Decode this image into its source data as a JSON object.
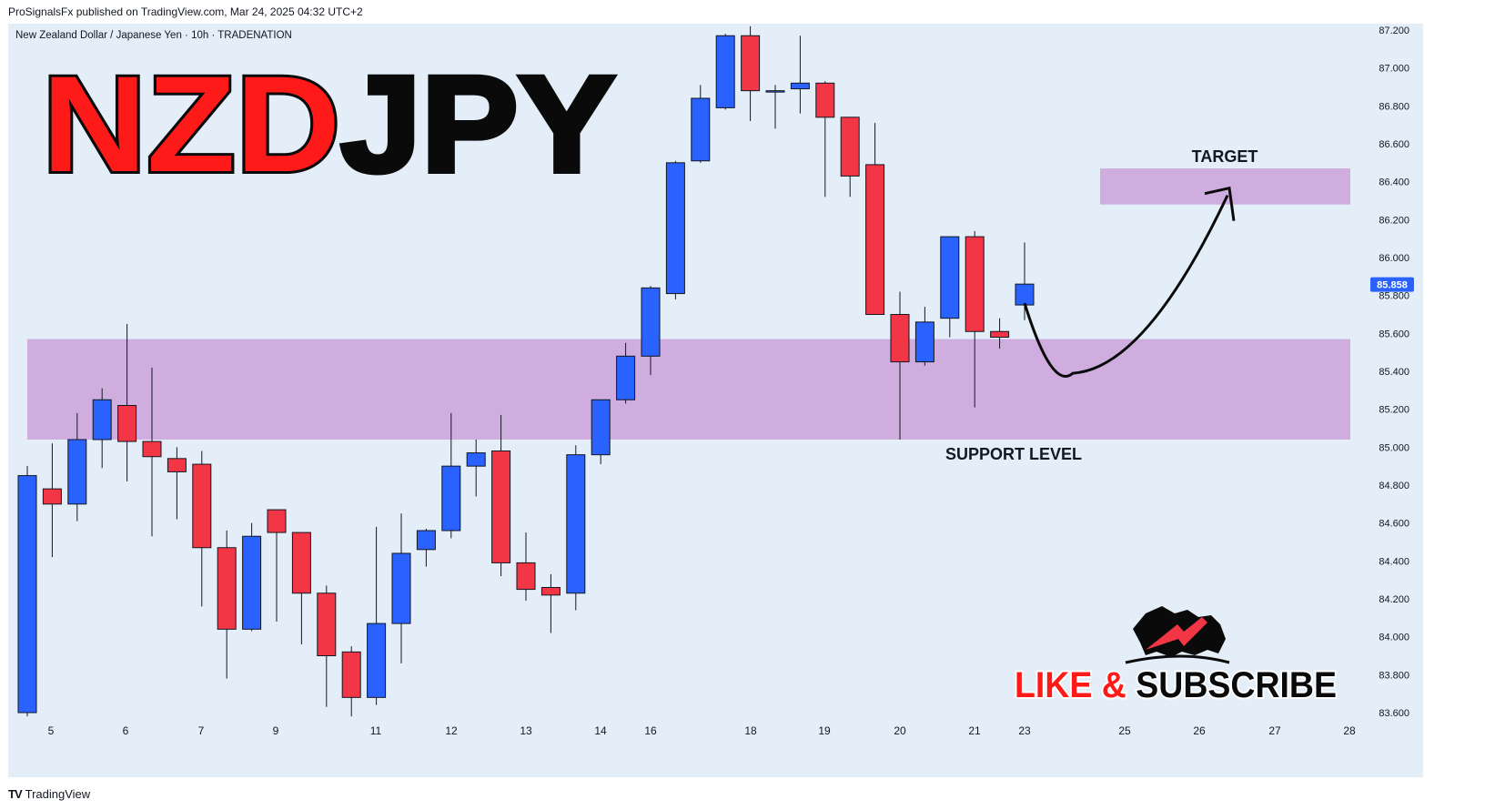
{
  "header": {
    "published": "ProSignalsFx published on TradingView.com, Mar 24, 2025 04:32 UTC+2",
    "instrument": "New Zealand Dollar / Japanese Yen · 10h · TRADENATION"
  },
  "overlay": {
    "title_part1": "NZD",
    "title_part2": "JPY",
    "target_label": "TARGET",
    "support_label": "SUPPORT LEVEL",
    "cta_like": "LIKE",
    "cta_amp": "&",
    "cta_subscribe": "SUBSCRIBE"
  },
  "footer": {
    "logo": "TV",
    "brand": "TradingView"
  },
  "colors": {
    "bull": "#2962ff",
    "bear": "#f23645",
    "zone": "#cea9dc",
    "background": "#e3eef9",
    "title_red": "#ff1a1a"
  },
  "chart_data": {
    "type": "candlestick",
    "symbol": "NZDJPY",
    "timeframe": "10h",
    "ylim": [
      83.55,
      87.25
    ],
    "y_ticks": [
      "87.200",
      "87.000",
      "86.800",
      "86.600",
      "86.400",
      "86.200",
      "86.000",
      "85.800",
      "85.600",
      "85.400",
      "85.200",
      "85.000",
      "84.800",
      "84.600",
      "84.400",
      "84.200",
      "84.000",
      "83.800",
      "83.600"
    ],
    "x_ticks": [
      "5",
      "6",
      "7",
      "9",
      "11",
      "12",
      "13",
      "14",
      "16",
      "18",
      "19",
      "20",
      "21",
      "23",
      "25",
      "26",
      "27",
      "28"
    ],
    "current_price": "85.858",
    "candles": [
      {
        "o": 83.6,
        "h": 84.9,
        "l": 83.58,
        "c": 84.85
      },
      {
        "o": 84.78,
        "h": 85.02,
        "l": 84.42,
        "c": 84.7
      },
      {
        "o": 84.7,
        "h": 85.18,
        "l": 84.61,
        "c": 85.04
      },
      {
        "o": 85.04,
        "h": 85.31,
        "l": 84.89,
        "c": 85.25
      },
      {
        "o": 85.22,
        "h": 85.65,
        "l": 84.82,
        "c": 85.03
      },
      {
        "o": 85.03,
        "h": 85.42,
        "l": 84.53,
        "c": 84.95
      },
      {
        "o": 84.94,
        "h": 85.0,
        "l": 84.62,
        "c": 84.87
      },
      {
        "o": 84.91,
        "h": 84.98,
        "l": 84.16,
        "c": 84.47
      },
      {
        "o": 84.47,
        "h": 84.56,
        "l": 83.78,
        "c": 84.04
      },
      {
        "o": 84.04,
        "h": 84.6,
        "l": 84.03,
        "c": 84.53
      },
      {
        "o": 84.67,
        "h": 84.67,
        "l": 84.08,
        "c": 84.55
      },
      {
        "o": 84.55,
        "h": 84.55,
        "l": 83.96,
        "c": 84.23
      },
      {
        "o": 84.23,
        "h": 84.27,
        "l": 83.63,
        "c": 83.9
      },
      {
        "o": 83.92,
        "h": 83.95,
        "l": 83.58,
        "c": 83.68
      },
      {
        "o": 83.68,
        "h": 84.58,
        "l": 83.64,
        "c": 84.07
      },
      {
        "o": 84.07,
        "h": 84.65,
        "l": 83.86,
        "c": 84.44
      },
      {
        "o": 84.46,
        "h": 84.57,
        "l": 84.37,
        "c": 84.56
      },
      {
        "o": 84.56,
        "h": 85.18,
        "l": 84.52,
        "c": 84.9
      },
      {
        "o": 84.9,
        "h": 85.04,
        "l": 84.74,
        "c": 84.97
      },
      {
        "o": 84.98,
        "h": 85.17,
        "l": 84.32,
        "c": 84.39
      },
      {
        "o": 84.39,
        "h": 84.55,
        "l": 84.19,
        "c": 84.25
      },
      {
        "o": 84.26,
        "h": 84.33,
        "l": 84.02,
        "c": 84.22
      },
      {
        "o": 84.23,
        "h": 85.01,
        "l": 84.14,
        "c": 84.96
      },
      {
        "o": 84.96,
        "h": 85.25,
        "l": 84.91,
        "c": 85.25
      },
      {
        "o": 85.25,
        "h": 85.55,
        "l": 85.23,
        "c": 85.48
      },
      {
        "o": 85.48,
        "h": 85.85,
        "l": 85.38,
        "c": 85.84
      },
      {
        "o": 85.81,
        "h": 86.51,
        "l": 85.78,
        "c": 86.5
      },
      {
        "o": 86.51,
        "h": 86.91,
        "l": 86.5,
        "c": 86.84
      },
      {
        "o": 86.79,
        "h": 87.18,
        "l": 86.78,
        "c": 87.17
      },
      {
        "o": 87.17,
        "h": 87.22,
        "l": 86.72,
        "c": 86.88
      },
      {
        "o": 86.88,
        "h": 86.91,
        "l": 86.68,
        "c": 86.88
      },
      {
        "o": 86.89,
        "h": 87.17,
        "l": 86.76,
        "c": 86.92
      },
      {
        "o": 86.92,
        "h": 86.93,
        "l": 86.32,
        "c": 86.74
      },
      {
        "o": 86.74,
        "h": 86.74,
        "l": 86.32,
        "c": 86.43
      },
      {
        "o": 86.49,
        "h": 86.71,
        "l": 85.72,
        "c": 85.7
      },
      {
        "o": 85.7,
        "h": 85.82,
        "l": 85.04,
        "c": 85.45
      },
      {
        "o": 85.45,
        "h": 85.74,
        "l": 85.43,
        "c": 85.66
      },
      {
        "o": 85.68,
        "h": 86.11,
        "l": 85.58,
        "c": 86.11
      },
      {
        "o": 86.11,
        "h": 86.14,
        "l": 85.21,
        "c": 85.61
      },
      {
        "o": 85.61,
        "h": 85.68,
        "l": 85.52,
        "c": 85.58
      },
      {
        "o": 85.75,
        "h": 86.08,
        "l": 85.67,
        "c": 85.86
      }
    ],
    "zones": [
      {
        "label": "SUPPORT LEVEL",
        "y1": 85.04,
        "y2": 85.57
      },
      {
        "label": "TARGET",
        "y1": 86.28,
        "y2": 86.47
      }
    ],
    "projection_path": [
      {
        "x": 85.76,
        "anchor": "last-candle"
      },
      {
        "y": 85.39,
        "x_label": "24"
      },
      {
        "y": 86.28,
        "x_label": "26"
      }
    ],
    "grid": false,
    "legend": "none"
  }
}
